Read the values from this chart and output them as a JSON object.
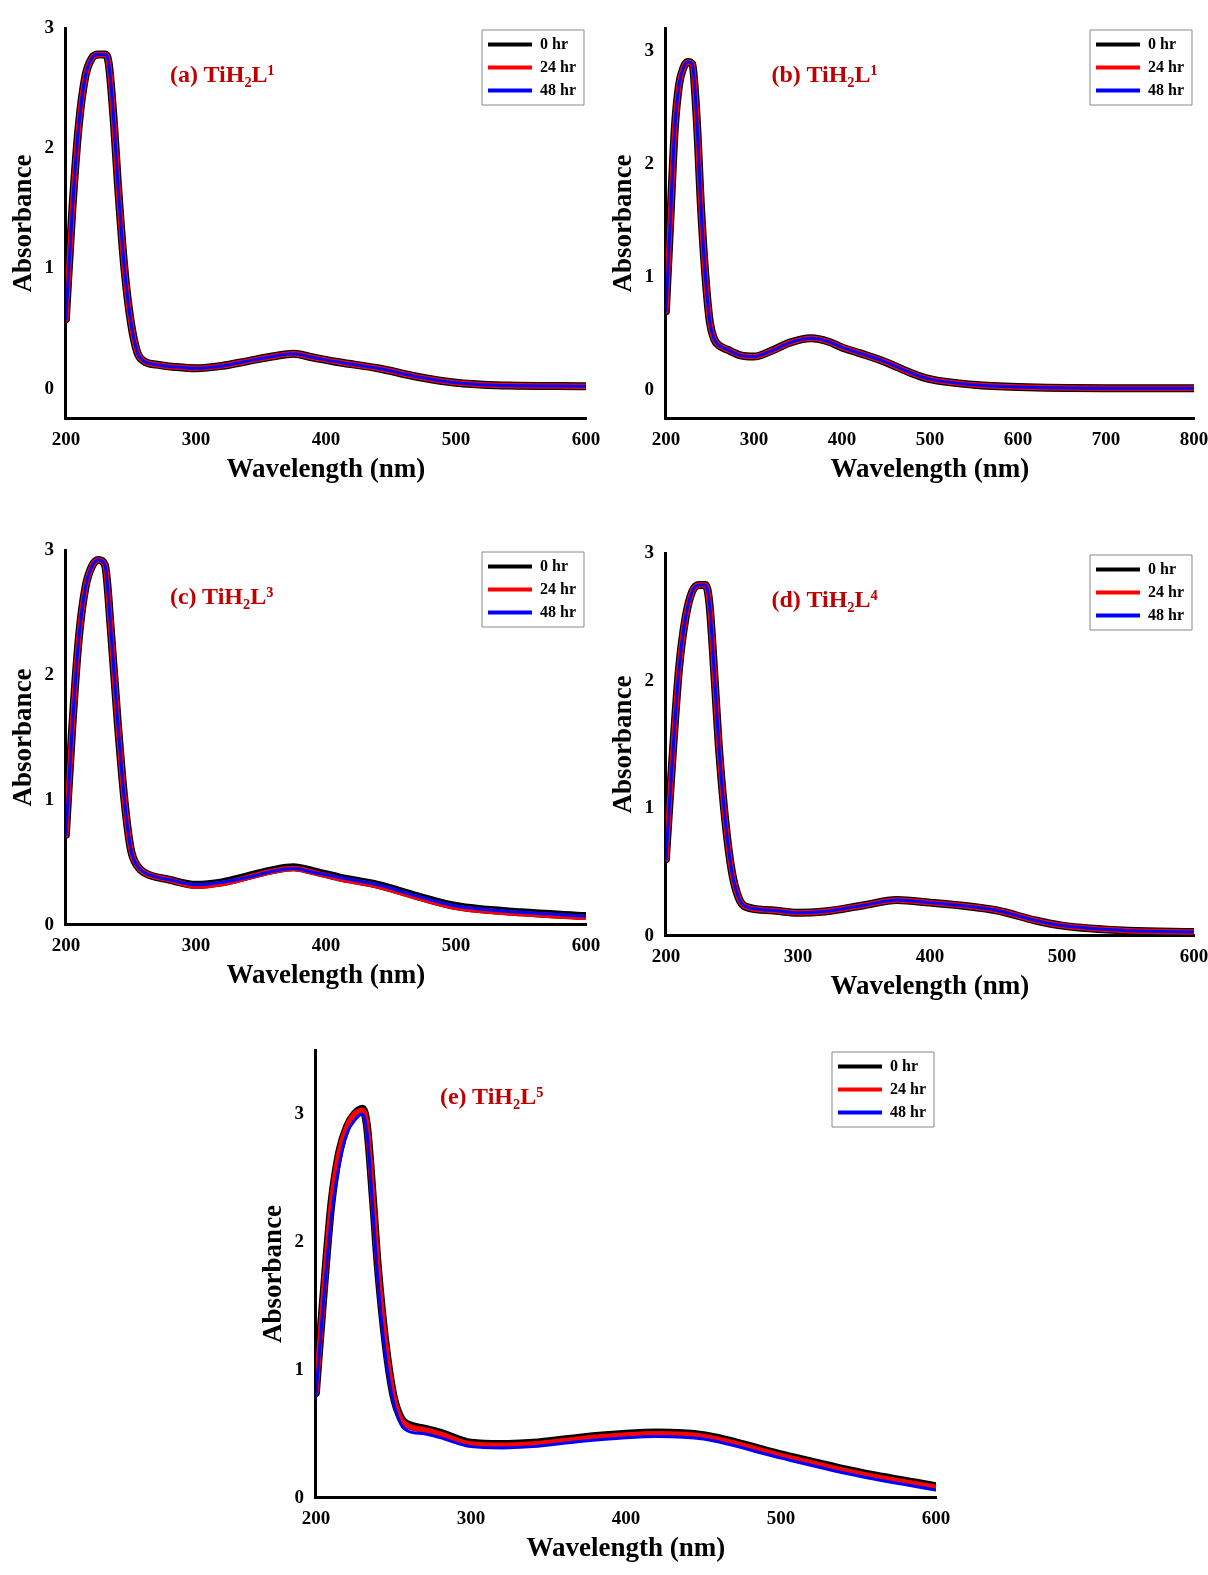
{
  "chart_data": [
    {
      "type": "line",
      "title": "(a) TiH₂L¹",
      "xlabel": "Wavelength (nm)",
      "ylabel": "Absorbance",
      "xlim": [
        200,
        600
      ],
      "xticks": [
        200,
        300,
        400,
        500,
        600
      ],
      "ylim": [
        -0.25,
        3
      ],
      "yticks": [
        0,
        1,
        2,
        3
      ],
      "grid": false,
      "legend": "top right",
      "x": [
        200,
        205,
        210,
        215,
        220,
        225,
        230,
        233,
        237,
        240,
        245,
        250,
        255,
        260,
        270,
        285,
        300,
        320,
        340,
        360,
        375,
        390,
        410,
        440,
        470,
        500,
        530,
        600
      ],
      "series": [
        {
          "name": "0 hr",
          "color": "#000000",
          "values": [
            0.58,
            1.5,
            2.2,
            2.6,
            2.75,
            2.78,
            2.78,
            2.7,
            2.2,
            1.7,
            1.0,
            0.55,
            0.3,
            0.23,
            0.2,
            0.18,
            0.17,
            0.19,
            0.23,
            0.27,
            0.29,
            0.26,
            0.22,
            0.17,
            0.1,
            0.05,
            0.03,
            0.02
          ]
        },
        {
          "name": "24 hr",
          "color": "#ff0000",
          "values": [
            0.58,
            1.5,
            2.2,
            2.6,
            2.75,
            2.78,
            2.78,
            2.7,
            2.2,
            1.7,
            1.0,
            0.55,
            0.3,
            0.23,
            0.2,
            0.18,
            0.17,
            0.19,
            0.23,
            0.27,
            0.29,
            0.26,
            0.22,
            0.17,
            0.1,
            0.05,
            0.03,
            0.02
          ]
        },
        {
          "name": "48 hr",
          "color": "#0000ff",
          "values": [
            0.58,
            1.5,
            2.2,
            2.6,
            2.75,
            2.78,
            2.78,
            2.7,
            2.2,
            1.7,
            1.0,
            0.55,
            0.3,
            0.23,
            0.2,
            0.18,
            0.17,
            0.19,
            0.23,
            0.27,
            0.29,
            0.26,
            0.22,
            0.17,
            0.1,
            0.05,
            0.03,
            0.02
          ]
        }
      ]
    },
    {
      "type": "line",
      "title": "(b) TiH₂L¹",
      "xlabel": "Wavelength (nm)",
      "ylabel": "Absorbance",
      "xlim": [
        200,
        800
      ],
      "xticks": [
        200,
        300,
        400,
        500,
        600,
        700,
        800
      ],
      "ylim": [
        -0.25,
        3.2
      ],
      "yticks": [
        0,
        1,
        2,
        3
      ],
      "grid": false,
      "legend": "top right",
      "x": [
        200,
        205,
        210,
        215,
        220,
        225,
        230,
        235,
        240,
        245,
        250,
        255,
        260,
        270,
        285,
        300,
        320,
        340,
        365,
        385,
        400,
        420,
        450,
        480,
        500,
        550,
        600,
        700,
        800
      ],
      "series": [
        {
          "name": "0 hr",
          "color": "#000000",
          "values": [
            0.7,
            1.5,
            2.3,
            2.7,
            2.85,
            2.9,
            2.88,
            2.4,
            1.6,
            1.0,
            0.6,
            0.45,
            0.4,
            0.36,
            0.31,
            0.3,
            0.35,
            0.42,
            0.46,
            0.43,
            0.38,
            0.33,
            0.25,
            0.15,
            0.1,
            0.05,
            0.03,
            0.02,
            0.02
          ]
        },
        {
          "name": "24 hr",
          "color": "#ff0000",
          "values": [
            0.7,
            1.5,
            2.3,
            2.7,
            2.85,
            2.9,
            2.88,
            2.4,
            1.6,
            1.0,
            0.6,
            0.45,
            0.4,
            0.36,
            0.31,
            0.3,
            0.35,
            0.42,
            0.46,
            0.43,
            0.38,
            0.33,
            0.25,
            0.15,
            0.1,
            0.05,
            0.03,
            0.02,
            0.02
          ]
        },
        {
          "name": "48 hr",
          "color": "#0000ff",
          "values": [
            0.7,
            1.5,
            2.3,
            2.7,
            2.85,
            2.9,
            2.88,
            2.4,
            1.6,
            1.0,
            0.6,
            0.45,
            0.4,
            0.36,
            0.31,
            0.3,
            0.35,
            0.42,
            0.46,
            0.43,
            0.38,
            0.33,
            0.25,
            0.15,
            0.1,
            0.05,
            0.03,
            0.02,
            0.02
          ]
        }
      ]
    },
    {
      "type": "line",
      "title": "(c) TiH₂L³",
      "xlabel": "Wavelength (nm)",
      "ylabel": "Absorbance",
      "xlim": [
        200,
        600
      ],
      "xticks": [
        200,
        300,
        400,
        500,
        600
      ],
      "ylim": [
        0,
        3
      ],
      "yticks": [
        0,
        1,
        2,
        3
      ],
      "grid": false,
      "legend": "top right",
      "x": [
        200,
        205,
        210,
        215,
        220,
        225,
        230,
        235,
        240,
        245,
        250,
        255,
        260,
        280,
        300,
        320,
        340,
        360,
        375,
        390,
        410,
        440,
        470,
        500,
        550,
        600
      ],
      "series": [
        {
          "name": "0 hr",
          "color": "#000000",
          "values": [
            0.72,
            1.6,
            2.3,
            2.7,
            2.87,
            2.92,
            2.88,
            2.3,
            1.6,
            1.0,
            0.6,
            0.47,
            0.42,
            0.36,
            0.32,
            0.34,
            0.39,
            0.44,
            0.46,
            0.43,
            0.38,
            0.32,
            0.23,
            0.15,
            0.1,
            0.07
          ]
        },
        {
          "name": "24 hr",
          "color": "#ff0000",
          "values": [
            0.72,
            1.6,
            2.3,
            2.7,
            2.87,
            2.92,
            2.88,
            2.3,
            1.6,
            1.0,
            0.6,
            0.47,
            0.42,
            0.36,
            0.31,
            0.33,
            0.38,
            0.43,
            0.45,
            0.42,
            0.37,
            0.31,
            0.22,
            0.14,
            0.09,
            0.06
          ]
        },
        {
          "name": "48 hr",
          "color": "#0000ff",
          "values": [
            0.72,
            1.6,
            2.3,
            2.7,
            2.87,
            2.92,
            2.88,
            2.3,
            1.6,
            1.0,
            0.6,
            0.47,
            0.42,
            0.36,
            0.32,
            0.34,
            0.38,
            0.43,
            0.45,
            0.42,
            0.38,
            0.32,
            0.23,
            0.15,
            0.1,
            0.07
          ]
        }
      ]
    },
    {
      "type": "line",
      "title": "(d) TiH₂L⁴",
      "xlabel": "Wavelength (nm)",
      "ylabel": "Absorbance",
      "xlim": [
        200,
        600
      ],
      "xticks": [
        200,
        300,
        400,
        500,
        600
      ],
      "ylim": [
        0,
        3
      ],
      "yticks": [
        0,
        1,
        2,
        3
      ],
      "grid": false,
      "legend": "top right",
      "x": [
        200,
        205,
        210,
        215,
        220,
        225,
        230,
        233,
        237,
        240,
        245,
        250,
        255,
        260,
        280,
        300,
        320,
        350,
        375,
        400,
        430,
        450,
        480,
        500,
        550,
        600
      ],
      "series": [
        {
          "name": "0 hr",
          "color": "#000000",
          "values": [
            0.6,
            1.4,
            2.1,
            2.5,
            2.7,
            2.75,
            2.75,
            2.6,
            2.0,
            1.5,
            0.9,
            0.5,
            0.3,
            0.23,
            0.2,
            0.18,
            0.19,
            0.24,
            0.28,
            0.26,
            0.23,
            0.2,
            0.12,
            0.08,
            0.04,
            0.03
          ]
        },
        {
          "name": "24 hr",
          "color": "#ff0000",
          "values": [
            0.6,
            1.4,
            2.1,
            2.5,
            2.7,
            2.75,
            2.75,
            2.6,
            2.0,
            1.5,
            0.9,
            0.5,
            0.3,
            0.23,
            0.2,
            0.18,
            0.19,
            0.24,
            0.28,
            0.26,
            0.23,
            0.2,
            0.12,
            0.08,
            0.04,
            0.03
          ]
        },
        {
          "name": "48 hr",
          "color": "#0000ff",
          "values": [
            0.6,
            1.4,
            2.1,
            2.5,
            2.7,
            2.75,
            2.75,
            2.6,
            2.0,
            1.5,
            0.9,
            0.5,
            0.3,
            0.23,
            0.2,
            0.18,
            0.19,
            0.24,
            0.28,
            0.26,
            0.23,
            0.2,
            0.12,
            0.08,
            0.04,
            0.03
          ]
        }
      ]
    },
    {
      "type": "line",
      "title": "(e) TiH₂L⁵",
      "xlabel": "Wavelength (nm)",
      "ylabel": "Absorbance",
      "xlim": [
        200,
        600
      ],
      "xticks": [
        200,
        300,
        400,
        500,
        600
      ],
      "ylim": [
        0,
        3.5
      ],
      "yticks": [
        0,
        1,
        2,
        3
      ],
      "grid": false,
      "legend": "top right",
      "x": [
        200,
        205,
        210,
        215,
        220,
        225,
        230,
        233,
        237,
        240,
        245,
        250,
        255,
        260,
        270,
        280,
        300,
        320,
        340,
        370,
        400,
        420,
        450,
        500,
        550,
        600
      ],
      "series": [
        {
          "name": "0 hr",
          "color": "#000000",
          "values": [
            0.82,
            1.6,
            2.3,
            2.7,
            2.9,
            3.0,
            3.04,
            2.9,
            2.3,
            1.8,
            1.2,
            0.8,
            0.62,
            0.57,
            0.54,
            0.51,
            0.43,
            0.42,
            0.43,
            0.47,
            0.5,
            0.51,
            0.49,
            0.34,
            0.2,
            0.09
          ]
        },
        {
          "name": "24 hr",
          "color": "#ff0000",
          "values": [
            0.82,
            1.6,
            2.3,
            2.7,
            2.9,
            3.0,
            3.03,
            2.9,
            2.3,
            1.8,
            1.2,
            0.8,
            0.61,
            0.56,
            0.53,
            0.5,
            0.42,
            0.41,
            0.42,
            0.46,
            0.49,
            0.5,
            0.48,
            0.33,
            0.19,
            0.08
          ]
        },
        {
          "name": "48 hr",
          "color": "#0000ff",
          "values": [
            0.8,
            1.55,
            2.2,
            2.6,
            2.85,
            2.95,
            3.0,
            2.85,
            2.2,
            1.7,
            1.1,
            0.75,
            0.57,
            0.52,
            0.5,
            0.47,
            0.4,
            0.39,
            0.4,
            0.44,
            0.47,
            0.48,
            0.46,
            0.31,
            0.17,
            0.06
          ]
        }
      ]
    }
  ]
}
